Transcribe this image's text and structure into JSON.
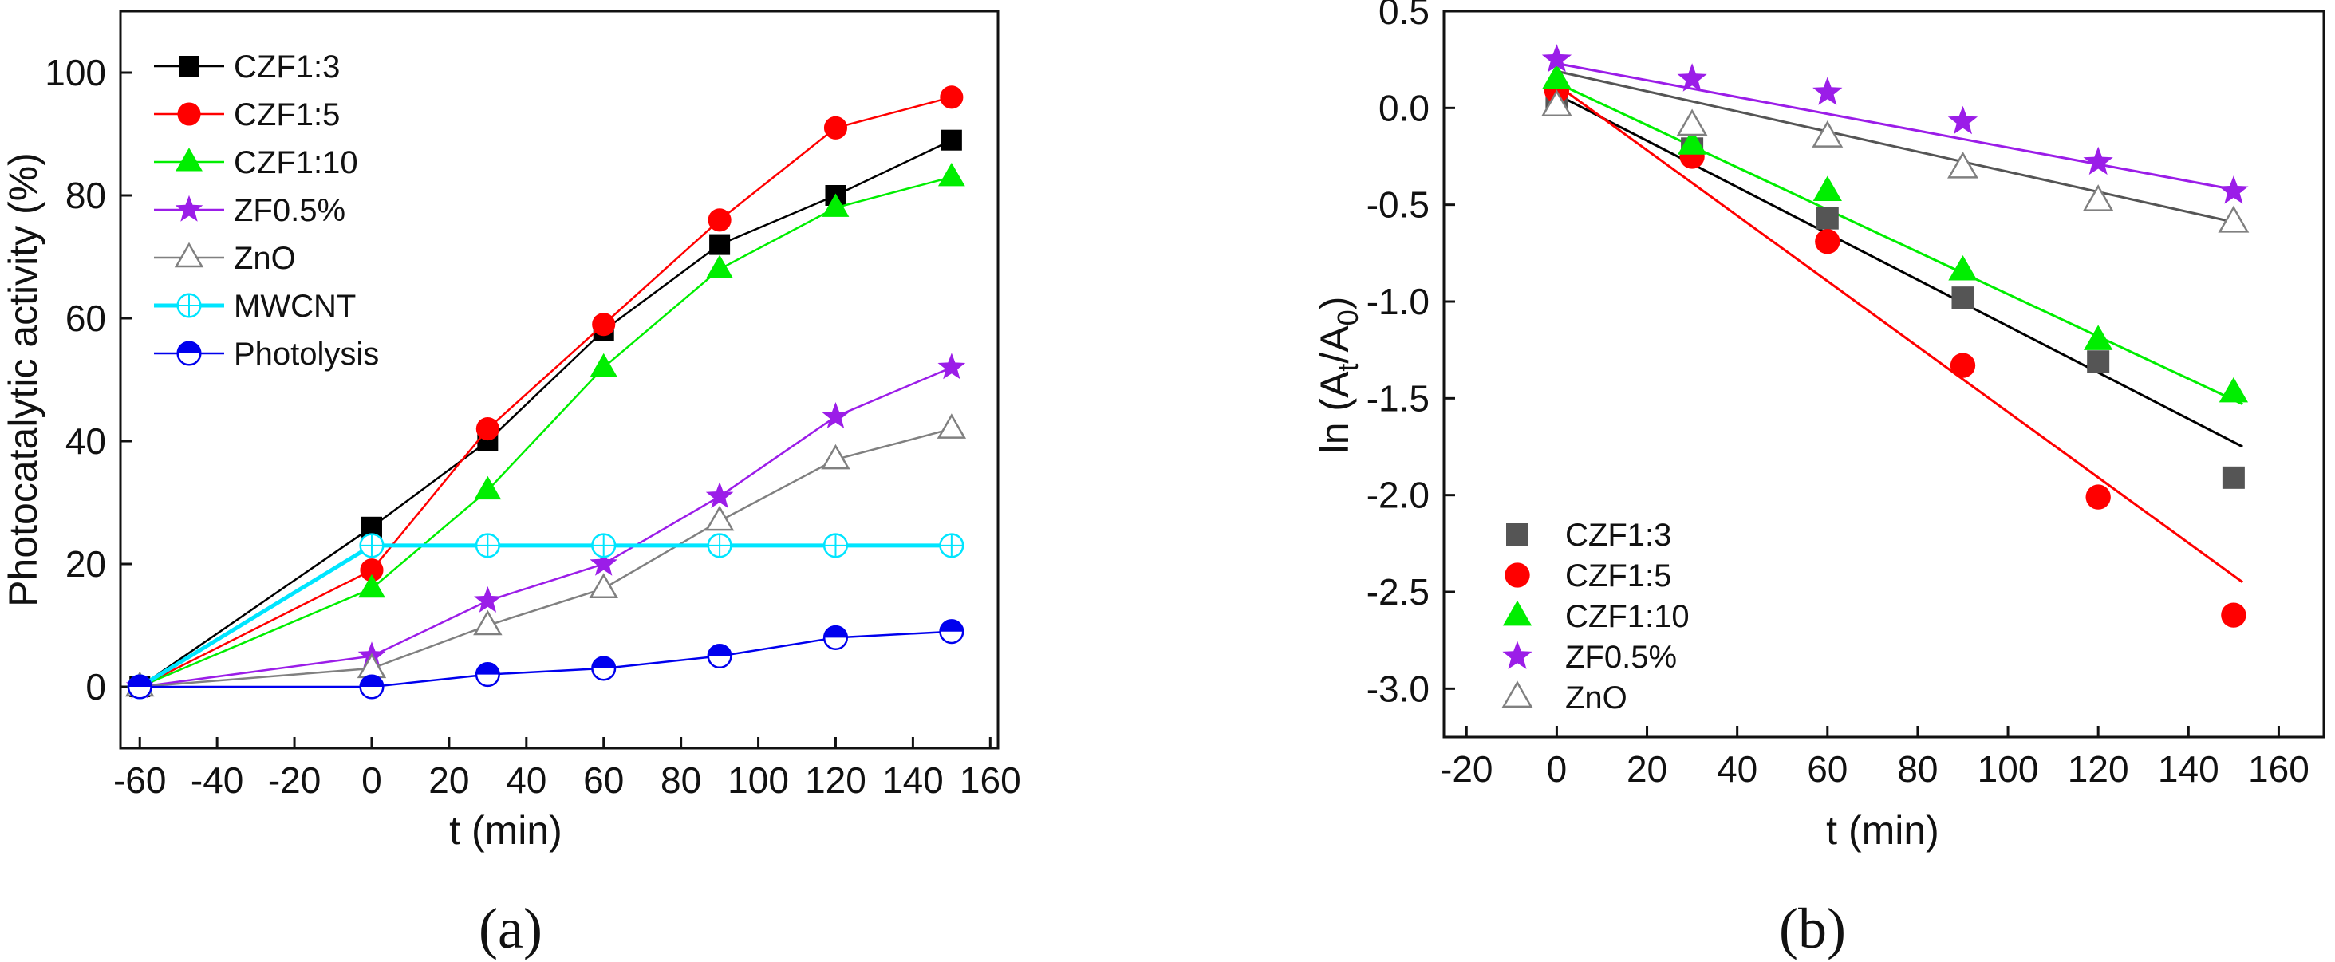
{
  "chart_data": [
    {
      "type": "line",
      "panel_label": "(a)",
      "xlabel": "t (min)",
      "ylabel": "Photocatalytic activity (%)",
      "xlim": [
        -65,
        162
      ],
      "ylim": [
        -10,
        110
      ],
      "xticks": [
        -60,
        -40,
        -20,
        0,
        20,
        40,
        60,
        80,
        100,
        120,
        140,
        160
      ],
      "yticks": [
        0,
        20,
        40,
        60,
        80,
        100
      ],
      "legend_position": "top-left",
      "series": [
        {
          "name": "CZF1:3",
          "color": "#000000",
          "marker": "square",
          "x": [
            -60,
            0,
            30,
            60,
            90,
            120,
            150
          ],
          "y": [
            0,
            26,
            40,
            58,
            72,
            80,
            89
          ]
        },
        {
          "name": "CZF1:5",
          "color": "#ff0000",
          "marker": "circle",
          "x": [
            -60,
            0,
            30,
            60,
            90,
            120,
            150
          ],
          "y": [
            0,
            19,
            42,
            59,
            76,
            91,
            96
          ]
        },
        {
          "name": "CZF1:10",
          "color": "#00ee00",
          "marker": "triangle",
          "x": [
            -60,
            0,
            30,
            60,
            90,
            120,
            150
          ],
          "y": [
            0,
            16,
            32,
            52,
            68,
            78,
            83
          ]
        },
        {
          "name": "ZF0.5%",
          "color": "#9b1de8",
          "marker": "star",
          "x": [
            -60,
            0,
            30,
            60,
            90,
            120,
            150
          ],
          "y": [
            0,
            5,
            14,
            20,
            31,
            44,
            52
          ]
        },
        {
          "name": "ZnO",
          "color": "#808080",
          "marker": "triangle-open",
          "x": [
            -60,
            0,
            30,
            60,
            90,
            120,
            150
          ],
          "y": [
            0,
            3,
            10,
            16,
            27,
            37,
            42
          ]
        },
        {
          "name": "MWCNT",
          "color": "#00e5ff",
          "marker": "circle-plus",
          "x": [
            -60,
            0,
            30,
            60,
            90,
            120,
            150
          ],
          "y": [
            0,
            23,
            23,
            23,
            23,
            23,
            23
          ]
        },
        {
          "name": "Photolysis",
          "color": "#0000ee",
          "marker": "circle-half",
          "x": [
            -60,
            0,
            30,
            60,
            90,
            120,
            150
          ],
          "y": [
            0,
            0,
            2,
            3,
            5,
            8,
            9
          ]
        }
      ]
    },
    {
      "type": "scatter",
      "panel_label": "(b)",
      "xlabel": "t (min)",
      "ylabel_prefix": "ln (A",
      "ylabel_sub1": "t",
      "ylabel_mid": "/A",
      "ylabel_sub2": "0",
      "ylabel_suffix": ")",
      "xlim": [
        -25,
        170
      ],
      "ylim": [
        -3.25,
        0.5
      ],
      "xticks": [
        -20,
        0,
        20,
        40,
        60,
        80,
        100,
        120,
        140,
        160
      ],
      "yticks": [
        0.5,
        0.0,
        -0.5,
        -1.0,
        -1.5,
        -2.0,
        -2.5,
        -3.0
      ],
      "legend_position": "bottom-left",
      "series": [
        {
          "name": "CZF1:3",
          "color": "#555555",
          "marker": "square",
          "x": [
            0,
            30,
            60,
            90,
            120,
            150
          ],
          "y": [
            0.05,
            -0.21,
            -0.57,
            -0.98,
            -1.31,
            -1.91
          ],
          "fit": {
            "x": [
              0,
              152
            ],
            "y": [
              0.07,
              -1.75
            ],
            "color": "#000000"
          }
        },
        {
          "name": "CZF1:5",
          "color": "#ff0000",
          "marker": "circle",
          "x": [
            0,
            30,
            60,
            90,
            120,
            150
          ],
          "y": [
            0.09,
            -0.25,
            -0.69,
            -1.33,
            -2.01,
            -2.62
          ],
          "fit": {
            "x": [
              0,
              152
            ],
            "y": [
              0.12,
              -2.45
            ],
            "color": "#ff0000"
          }
        },
        {
          "name": "CZF1:10",
          "color": "#00ee00",
          "marker": "triangle",
          "x": [
            0,
            30,
            60,
            90,
            120,
            150
          ],
          "y": [
            0.15,
            -0.19,
            -0.43,
            -0.84,
            -1.2,
            -1.47
          ],
          "fit": {
            "x": [
              0,
              152
            ],
            "y": [
              0.13,
              -1.53
            ],
            "color": "#00ee00"
          }
        },
        {
          "name": "ZF0.5%",
          "color": "#9b1de8",
          "marker": "star",
          "x": [
            0,
            30,
            60,
            90,
            120,
            150
          ],
          "y": [
            0.25,
            0.15,
            0.08,
            -0.07,
            -0.28,
            -0.43
          ],
          "fit": {
            "x": [
              0,
              152
            ],
            "y": [
              0.23,
              -0.43
            ],
            "color": "#9b1de8"
          }
        },
        {
          "name": "ZnO",
          "color": "#808080",
          "marker": "triangle-open",
          "x": [
            0,
            30,
            60,
            90,
            120,
            150
          ],
          "y": [
            0.01,
            -0.09,
            -0.15,
            -0.31,
            -0.48,
            -0.59
          ],
          "fit": {
            "x": [
              0,
              152
            ],
            "y": [
              0.19,
              -0.6
            ],
            "color": "#555555"
          }
        }
      ]
    }
  ]
}
